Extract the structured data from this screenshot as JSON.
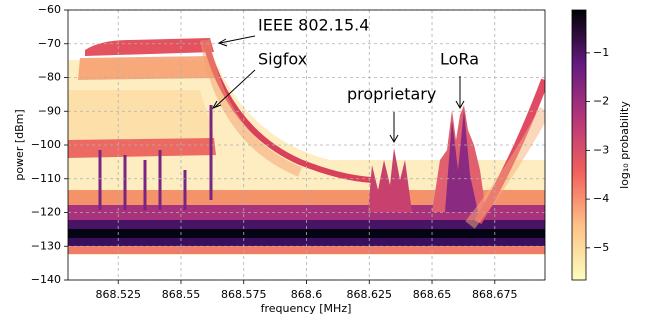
{
  "chart_data": {
    "type": "heatmap",
    "xlabel": "frequency [MHz]",
    "ylabel": "power [dBm]",
    "xlim": [
      868.505,
      868.695
    ],
    "xticks": [
      868.525,
      868.55,
      868.575,
      868.6,
      868.625,
      868.65,
      868.675
    ],
    "ylim": [
      -140,
      -60
    ],
    "yticks": [
      {
        "value": -140,
        "label": "−140"
      },
      {
        "value": -130,
        "label": "−130"
      },
      {
        "value": -120,
        "label": "−120"
      },
      {
        "value": -110,
        "label": "−110"
      },
      {
        "value": -100,
        "label": "−100"
      },
      {
        "value": -90,
        "label": "−90"
      },
      {
        "value": -80,
        "label": "−80"
      },
      {
        "value": -70,
        "label": "−70"
      },
      {
        "value": -60,
        "label": "−60"
      }
    ],
    "grid": true,
    "colorbar": {
      "label": "log₁₀ probability",
      "lim": [
        -5.66,
        -0.12
      ],
      "ticks": [
        {
          "value": -5,
          "label": "−5"
        },
        {
          "value": -4,
          "label": "−4"
        },
        {
          "value": -3,
          "label": "−3"
        },
        {
          "value": -2,
          "label": "−2"
        },
        {
          "value": -1,
          "label": "−1"
        }
      ]
    },
    "annotations": [
      "IEEE 802.15.4",
      "Sigfox",
      "proprietary",
      "LoRa"
    ]
  }
}
